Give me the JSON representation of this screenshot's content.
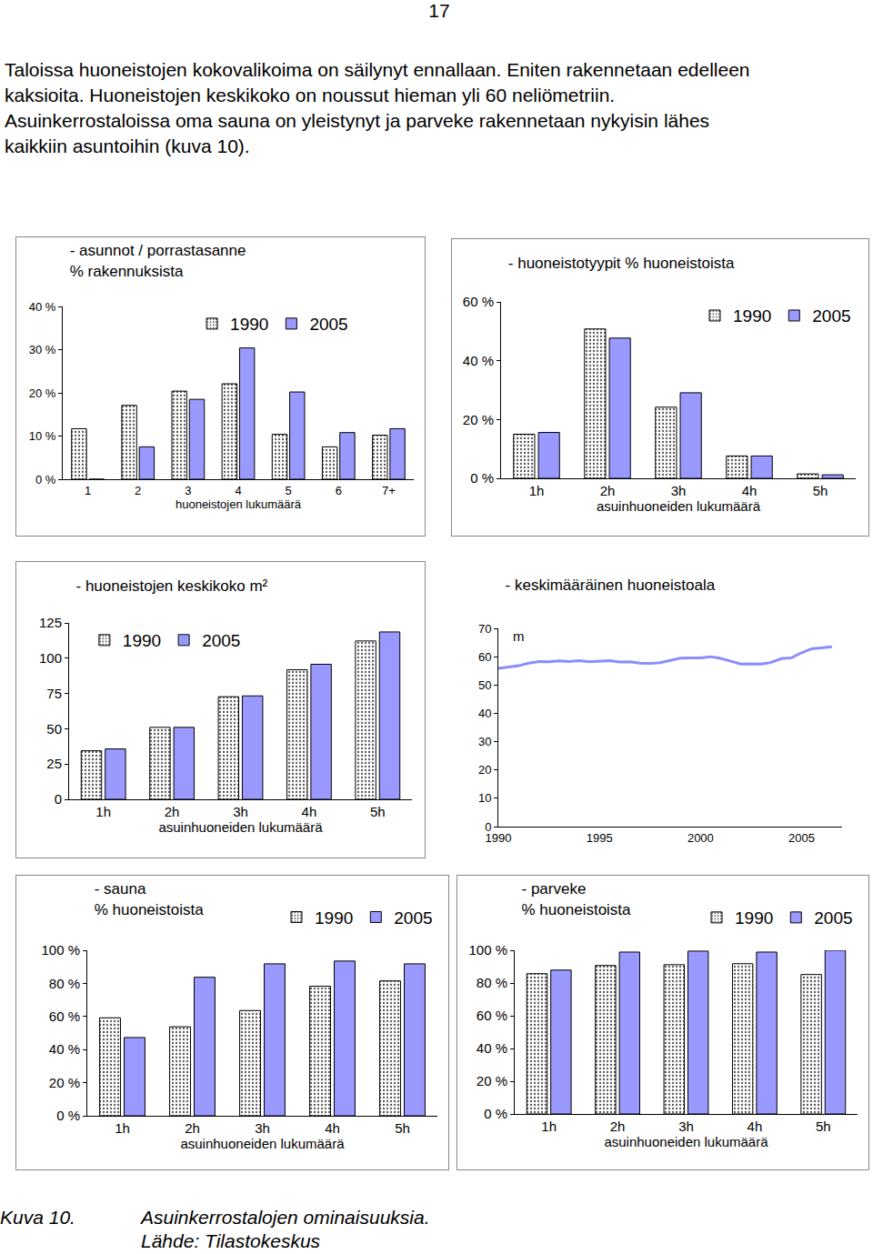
{
  "page_number": "17",
  "text": [
    "Taloissa huoneistojen kokovalikoima on säilynyt ennallaan. Eniten rakennetaan edelleen",
    "kaksioita. Huoneistojen keskikoko on noussut hieman yli 60 neliömetriin.",
    "Asuinkerrostaloissa oma sauna on yleistynyt ja parveke rakennetaan nykyisin lähes",
    "kaikkiin asuntoihin (kuva 10)."
  ],
  "chart_data": [
    {
      "type": "bar",
      "title": [
        "- asunnot / porrastasanne",
        "% rakennuksista"
      ],
      "categories": [
        "1",
        "2",
        "3",
        "4",
        "5",
        "6",
        "7+"
      ],
      "x_label": "huoneistojen lukumäärä",
      "series": [
        {
          "name": "1990",
          "color": "#ffffff",
          "marker": "dotted",
          "values": [
            11.7,
            17.1,
            20.4,
            22.1,
            10.4,
            7.5,
            10.2
          ]
        },
        {
          "name": "2005",
          "color": "#9999ff",
          "values": [
            0,
            7.5,
            18.5,
            30.4,
            20.2,
            10.8,
            11.7
          ]
        }
      ],
      "ylim": [
        0,
        40
      ],
      "yticks": [
        {
          "value": 0,
          "label": "0 %"
        },
        {
          "value": 10,
          "label": "10 %"
        },
        {
          "value": 20,
          "label": "20 %"
        },
        {
          "value": 30,
          "label": "30 %"
        },
        {
          "value": 40,
          "label": "40 %"
        }
      ],
      "legend": "top"
    },
    {
      "type": "bar",
      "title": [
        "- huoneistotyypit % huoneistoista"
      ],
      "categories": [
        "1h",
        "2h",
        "3h",
        "4h",
        "5h"
      ],
      "x_label": "asuinhuoneiden lukumäärä",
      "series": [
        {
          "name": "1990",
          "color": "#ffffff",
          "marker": "dotted",
          "values": [
            15.0,
            50.8,
            24.2,
            7.6,
            1.5
          ]
        },
        {
          "name": "2005",
          "color": "#9999ff",
          "values": [
            15.6,
            47.7,
            29.1,
            7.6,
            1.2
          ]
        }
      ],
      "ylim": [
        0,
        60
      ],
      "yticks": [
        {
          "value": 0,
          "label": "0 %"
        },
        {
          "value": 20,
          "label": "20 %"
        },
        {
          "value": 40,
          "label": "40 %"
        },
        {
          "value": 60,
          "label": "60 %"
        }
      ],
      "legend": "top right"
    },
    {
      "type": "bar",
      "title": [
        "- huoneistojen keskikoko m²"
      ],
      "categories": [
        "1h",
        "2h",
        "3h",
        "4h",
        "5h"
      ],
      "x_label": "asuinhuoneiden lukumäärä",
      "series": [
        {
          "name": "1990",
          "color": "#ffffff",
          "marker": "dotted",
          "values": [
            34.4,
            51.0,
            72.7,
            91.8,
            112.2
          ]
        },
        {
          "name": "2005",
          "color": "#9999ff",
          "values": [
            35.7,
            51.0,
            73.3,
            95.7,
            118.6
          ]
        }
      ],
      "ylim": [
        0,
        125
      ],
      "yticks": [
        0,
        25,
        50,
        75,
        100,
        125
      ],
      "legend": "top left"
    },
    {
      "type": "line",
      "title": [
        "- keskimääräinen huoneistoala"
      ],
      "x": [
        1990,
        1990.5,
        1991,
        1991.5,
        1992,
        1992.5,
        1993,
        1993.5,
        1994,
        1994.5,
        1995,
        1995.5,
        1996,
        1996.5,
        1997,
        1997.5,
        1998,
        1998.5,
        1999,
        1999.5,
        2000,
        2000.5,
        2001,
        2001.5,
        2002,
        2002.5,
        2003,
        2003.5,
        2004,
        2004.5,
        2005,
        2005.5,
        2006,
        2006.5
      ],
      "series": [
        {
          "color": "#8c8cff",
          "values": [
            55.9,
            56.3,
            56.8,
            57.7,
            58.3,
            58.2,
            58.5,
            58.3,
            58.6,
            58.2,
            58.4,
            58.6,
            58.1,
            58.2,
            57.7,
            57.6,
            57.9,
            58.8,
            59.5,
            59.6,
            59.6,
            60.0,
            59.4,
            58.4,
            57.4,
            57.5,
            57.4,
            58.0,
            59.3,
            59.6,
            61.4,
            62.8,
            63.2,
            63.5
          ]
        }
      ],
      "xlim": [
        1990,
        2007
      ],
      "xticks": [
        1990,
        1995,
        2000,
        2005
      ],
      "ylim": [
        0,
        70
      ],
      "yticks": [
        0,
        10,
        20,
        30,
        40,
        50,
        60,
        70
      ],
      "annotations": [
        {
          "text": "m",
          "x": 1991,
          "y": 64
        }
      ]
    },
    {
      "type": "bar",
      "title": [
        "- sauna",
        "% huoneistoista"
      ],
      "categories": [
        "1h",
        "2h",
        "3h",
        "4h",
        "5h"
      ],
      "x_label": "asuinhuoneiden lukumäärä",
      "series": [
        {
          "name": "1990",
          "color": "#ffffff",
          "marker": "dotted",
          "values": [
            59.2,
            53.8,
            63.6,
            78.3,
            81.5
          ]
        },
        {
          "name": "2005",
          "color": "#9999ff",
          "values": [
            47.3,
            83.7,
            91.8,
            93.5,
            91.8
          ]
        }
      ],
      "ylim": [
        0,
        100
      ],
      "yticks": [
        {
          "value": 0,
          "label": "0 %"
        },
        {
          "value": 20,
          "label": "20 %"
        },
        {
          "value": 40,
          "label": "40 %"
        },
        {
          "value": 60,
          "label": "60 %"
        },
        {
          "value": 80,
          "label": "80 %"
        },
        {
          "value": 100,
          "label": "100 %"
        }
      ],
      "legend": "above right"
    },
    {
      "type": "bar",
      "title": [
        "- parveke",
        "% huoneistoista"
      ],
      "categories": [
        "1h",
        "2h",
        "3h",
        "4h",
        "5h"
      ],
      "x_label": "asuinhuoneiden lukumäärä",
      "series": [
        {
          "name": "1990",
          "color": "#ffffff",
          "marker": "dotted",
          "values": [
            85.7,
            90.7,
            91.2,
            91.8,
            85.2
          ]
        },
        {
          "name": "2005",
          "color": "#9999ff",
          "values": [
            87.9,
            98.9,
            99.5,
            98.9,
            100
          ]
        }
      ],
      "ylim": [
        0,
        100
      ],
      "yticks": [
        {
          "value": 0,
          "label": "0 %"
        },
        {
          "value": 20,
          "label": "20 %"
        },
        {
          "value": 40,
          "label": "40 %"
        },
        {
          "value": 60,
          "label": "60 %"
        },
        {
          "value": 80,
          "label": "80 %"
        },
        {
          "value": 100,
          "label": "100 %"
        }
      ],
      "legend": "above right"
    }
  ],
  "caption": {
    "label": "Kuva 10.",
    "lines": [
      "Asuinkerrostalojen ominaisuuksia.",
      "Lähde: Tilastokeskus"
    ]
  }
}
